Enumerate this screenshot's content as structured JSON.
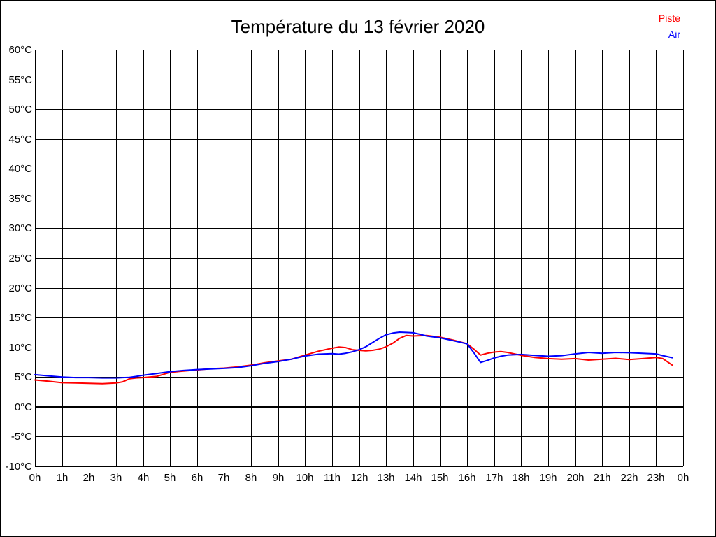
{
  "title": "Température du 13 février 2020",
  "legend": {
    "piste": {
      "label": "Piste",
      "color": "#ff0000"
    },
    "air": {
      "label": "Air",
      "color": "#0000ff"
    }
  },
  "chart_data": {
    "type": "line",
    "title": "Température du 13 février 2020",
    "xlabel": "",
    "ylabel": "",
    "x_unit": "hour of day",
    "y_unit": "°C",
    "xlim": [
      0,
      24
    ],
    "ylim": [
      -10,
      60
    ],
    "grid": true,
    "zero_line_bold": true,
    "legend_position": "top-right",
    "x_ticks": [
      {
        "v": 0,
        "label": "0h"
      },
      {
        "v": 1,
        "label": "1h"
      },
      {
        "v": 2,
        "label": "2h"
      },
      {
        "v": 3,
        "label": "3h"
      },
      {
        "v": 4,
        "label": "4h"
      },
      {
        "v": 5,
        "label": "5h"
      },
      {
        "v": 6,
        "label": "6h"
      },
      {
        "v": 7,
        "label": "7h"
      },
      {
        "v": 8,
        "label": "8h"
      },
      {
        "v": 9,
        "label": "9h"
      },
      {
        "v": 10,
        "label": "10h"
      },
      {
        "v": 11,
        "label": "11h"
      },
      {
        "v": 12,
        "label": "12h"
      },
      {
        "v": 13,
        "label": "13h"
      },
      {
        "v": 14,
        "label": "14h"
      },
      {
        "v": 15,
        "label": "15h"
      },
      {
        "v": 16,
        "label": "16h"
      },
      {
        "v": 17,
        "label": "17h"
      },
      {
        "v": 18,
        "label": "18h"
      },
      {
        "v": 19,
        "label": "19h"
      },
      {
        "v": 20,
        "label": "20h"
      },
      {
        "v": 21,
        "label": "21h"
      },
      {
        "v": 22,
        "label": "22h"
      },
      {
        "v": 23,
        "label": "23h"
      },
      {
        "v": 24,
        "label": "0h"
      }
    ],
    "y_ticks": [
      {
        "v": 60,
        "label": "60°C"
      },
      {
        "v": 55,
        "label": "55°C"
      },
      {
        "v": 50,
        "label": "50°C"
      },
      {
        "v": 45,
        "label": "45°C"
      },
      {
        "v": 40,
        "label": "40°C"
      },
      {
        "v": 35,
        "label": "35°C"
      },
      {
        "v": 30,
        "label": "30°C"
      },
      {
        "v": 25,
        "label": "25°C"
      },
      {
        "v": 20,
        "label": "20°C"
      },
      {
        "v": 15,
        "label": "15°C"
      },
      {
        "v": 10,
        "label": "10°C"
      },
      {
        "v": 5,
        "label": "5°C"
      },
      {
        "v": 0,
        "label": "0°C"
      },
      {
        "v": -5,
        "label": "-5°C"
      },
      {
        "v": -10,
        "label": "-10°C"
      }
    ],
    "x": [
      0,
      0.5,
      1,
      1.5,
      2,
      2.5,
      3,
      3.25,
      3.5,
      3.75,
      4,
      4.5,
      5,
      5.5,
      6,
      6.5,
      7,
      7.5,
      8,
      8.5,
      9,
      9.5,
      10,
      10.5,
      11,
      11.25,
      11.5,
      11.75,
      12,
      12.25,
      12.5,
      12.75,
      13,
      13.25,
      13.5,
      13.75,
      14,
      14.25,
      14.5,
      15,
      15.5,
      16,
      16.25,
      16.5,
      16.75,
      17,
      17.25,
      17.5,
      18,
      18.5,
      19,
      19.5,
      20,
      20.5,
      21,
      21.5,
      22,
      22.5,
      23,
      23.25,
      23.6
    ],
    "series": [
      {
        "name": "Piste",
        "color": "#ff0000",
        "values": [
          4.5,
          4.3,
          4.05,
          4.0,
          3.95,
          3.9,
          4.0,
          4.2,
          4.7,
          4.85,
          4.9,
          5.1,
          5.8,
          6.0,
          6.2,
          6.4,
          6.5,
          6.7,
          7.0,
          7.4,
          7.7,
          8.0,
          8.7,
          9.35,
          9.85,
          10.05,
          9.95,
          9.6,
          9.5,
          9.4,
          9.5,
          9.7,
          10.1,
          10.7,
          11.5,
          12.0,
          11.9,
          11.95,
          12.0,
          11.7,
          11.2,
          10.6,
          9.7,
          8.7,
          9.0,
          9.2,
          9.3,
          9.15,
          8.65,
          8.3,
          8.1,
          8.0,
          8.1,
          7.85,
          8.0,
          8.15,
          7.95,
          8.1,
          8.3,
          8.1,
          7.0
        ]
      },
      {
        "name": "Air",
        "color": "#0000ff",
        "values": [
          5.4,
          5.2,
          5.0,
          4.9,
          4.9,
          4.85,
          4.85,
          4.9,
          4.95,
          5.1,
          5.3,
          5.6,
          5.9,
          6.1,
          6.25,
          6.35,
          6.45,
          6.6,
          6.9,
          7.3,
          7.6,
          8.0,
          8.55,
          8.85,
          8.95,
          8.85,
          9.0,
          9.25,
          9.6,
          10.1,
          10.8,
          11.5,
          12.1,
          12.4,
          12.55,
          12.5,
          12.45,
          12.2,
          11.9,
          11.6,
          11.1,
          10.6,
          9.1,
          7.45,
          7.8,
          8.2,
          8.5,
          8.7,
          8.8,
          8.65,
          8.5,
          8.6,
          8.9,
          9.15,
          9.0,
          9.15,
          9.1,
          9.0,
          8.9,
          8.6,
          8.25
        ]
      }
    ]
  }
}
